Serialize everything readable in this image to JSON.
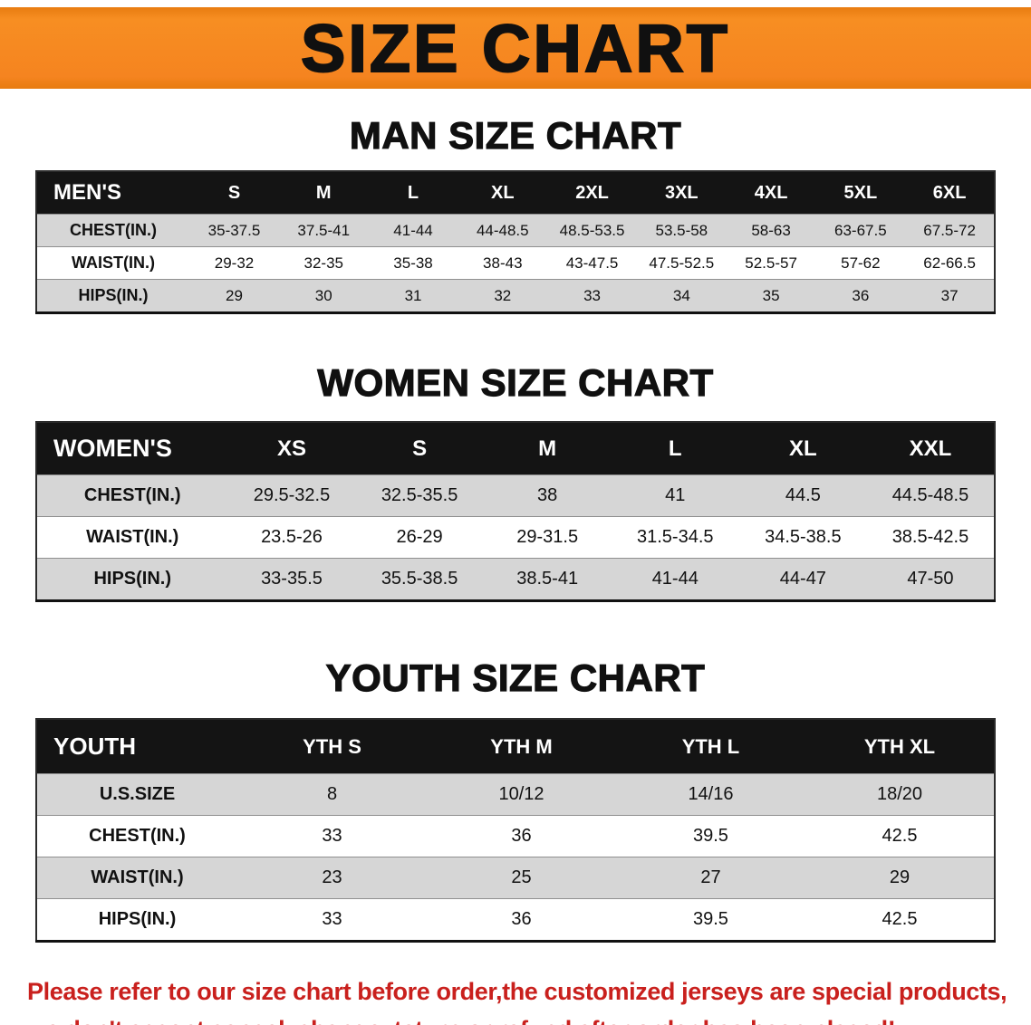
{
  "banner": {
    "title": "SIZE CHART",
    "background_color": "#f58420",
    "text_color": "#101010"
  },
  "sections": [
    {
      "id": "men",
      "heading": "MAN SIZE CHART",
      "table": {
        "header": [
          "MEN'S",
          "S",
          "M",
          "L",
          "XL",
          "2XL",
          "3XL",
          "4XL",
          "5XL",
          "6XL"
        ],
        "rows": [
          {
            "label": "CHEST(IN.)",
            "values": [
              "35-37.5",
              "37.5-41",
              "41-44",
              "44-48.5",
              "48.5-53.5",
              "53.5-58",
              "58-63",
              "63-67.5",
              "67.5-72"
            ]
          },
          {
            "label": "WAIST(IN.)",
            "values": [
              "29-32",
              "32-35",
              "35-38",
              "38-43",
              "43-47.5",
              "47.5-52.5",
              "52.5-57",
              "57-62",
              "62-66.5"
            ]
          },
          {
            "label": "HIPS(IN.)",
            "values": [
              "29",
              "30",
              "31",
              "32",
              "33",
              "34",
              "35",
              "36",
              "37"
            ]
          }
        ]
      }
    },
    {
      "id": "women",
      "heading": "WOMEN SIZE CHART",
      "table": {
        "header": [
          "WOMEN'S",
          "XS",
          "S",
          "M",
          "L",
          "XL",
          "XXL"
        ],
        "rows": [
          {
            "label": "CHEST(IN.)",
            "values": [
              "29.5-32.5",
              "32.5-35.5",
              "38",
              "41",
              "44.5",
              "44.5-48.5"
            ]
          },
          {
            "label": "WAIST(IN.)",
            "values": [
              "23.5-26",
              "26-29",
              "29-31.5",
              "31.5-34.5",
              "34.5-38.5",
              "38.5-42.5"
            ]
          },
          {
            "label": "HIPS(IN.)",
            "values": [
              "33-35.5",
              "35.5-38.5",
              "38.5-41",
              "41-44",
              "44-47",
              "47-50"
            ]
          }
        ]
      }
    },
    {
      "id": "youth",
      "heading": "YOUTH SIZE CHART",
      "table": {
        "header": [
          "YOUTH",
          "YTH S",
          "YTH M",
          "YTH L",
          "YTH XL"
        ],
        "rows": [
          {
            "label": "U.S.SIZE",
            "values": [
              "8",
              "10/12",
              "14/16",
              "18/20"
            ]
          },
          {
            "label": "CHEST(IN.)",
            "values": [
              "33",
              "36",
              "39.5",
              "42.5"
            ]
          },
          {
            "label": "WAIST(IN.)",
            "values": [
              "23",
              "25",
              "27",
              "29"
            ]
          },
          {
            "label": "HIPS(IN.)",
            "values": [
              "33",
              "36",
              "39.5",
              "42.5"
            ]
          }
        ]
      }
    }
  ],
  "footer": {
    "line1": "Please refer to our size chart before order,the customized jerseys are special products,",
    "line2": "we don't accept cancel, change, teturn or refund after order has been placed!",
    "text_color": "#c9201d"
  }
}
